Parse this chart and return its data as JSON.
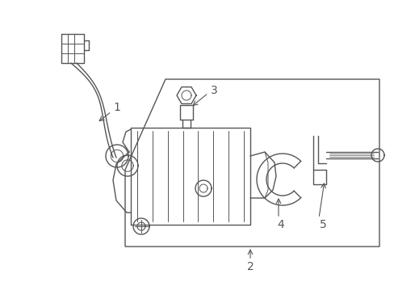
{
  "bg_color": "#ffffff",
  "line_color": "#555555",
  "lw": 1.0,
  "fig_width": 4.89,
  "fig_height": 3.6,
  "dpi": 100
}
